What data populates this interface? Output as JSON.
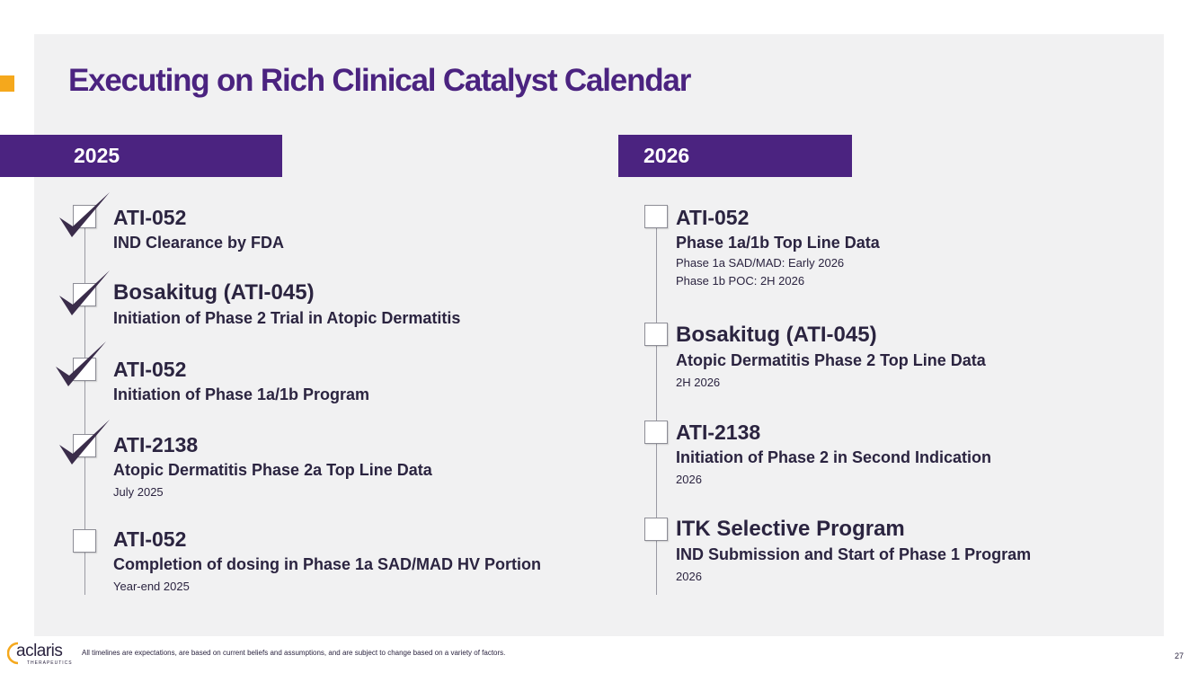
{
  "title": "Executing on Rich Clinical Catalyst Calendar",
  "colors": {
    "brand_purple": "#4b2380",
    "accent_orange": "#f5a81c",
    "panel_bg": "#f1f1f2"
  },
  "col2025": {
    "year": "2025",
    "items": [
      {
        "name": "ATI-052",
        "desc": "IND Clearance by FDA",
        "note": "",
        "done": true
      },
      {
        "name": "Bosakitug (ATI-045)",
        "desc": "Initiation of Phase 2 Trial in Atopic Dermatitis",
        "note": "",
        "done": true
      },
      {
        "name": "ATI-052",
        "desc": "Initiation of Phase 1a/1b Program",
        "note": "",
        "done": true
      },
      {
        "name": "ATI-2138",
        "desc": "Atopic Dermatitis Phase 2a Top Line Data",
        "note": "July 2025",
        "done": true
      },
      {
        "name": "ATI-052",
        "desc": "Completion of dosing in Phase 1a SAD/MAD HV Portion",
        "note": "Year-end 2025",
        "done": false
      }
    ]
  },
  "col2026": {
    "year": "2026",
    "items": [
      {
        "name": "ATI-052",
        "desc": "Phase 1a/1b Top Line Data",
        "note": "Phase 1a SAD/MAD: Early 2026",
        "note2": "Phase 1b POC: 2H 2026",
        "done": false
      },
      {
        "name": "Bosakitug (ATI-045)",
        "desc": "Atopic Dermatitis Phase 2 Top Line Data",
        "note": "2H 2026",
        "done": false
      },
      {
        "name": "ATI-2138",
        "desc": "Initiation of Phase 2 in Second Indication",
        "note": "2026",
        "done": false
      },
      {
        "name": "ITK Selective Program",
        "desc": "IND Submission and Start of Phase 1 Program",
        "note": "2026",
        "done": false
      }
    ]
  },
  "footer": {
    "logo": "aclaris",
    "logo_sub": "THERAPEUTICS",
    "disclaimer": "All timelines are expectations, are based on current beliefs and assumptions, and are subject to change based on a variety of factors.",
    "page_number": "27"
  }
}
